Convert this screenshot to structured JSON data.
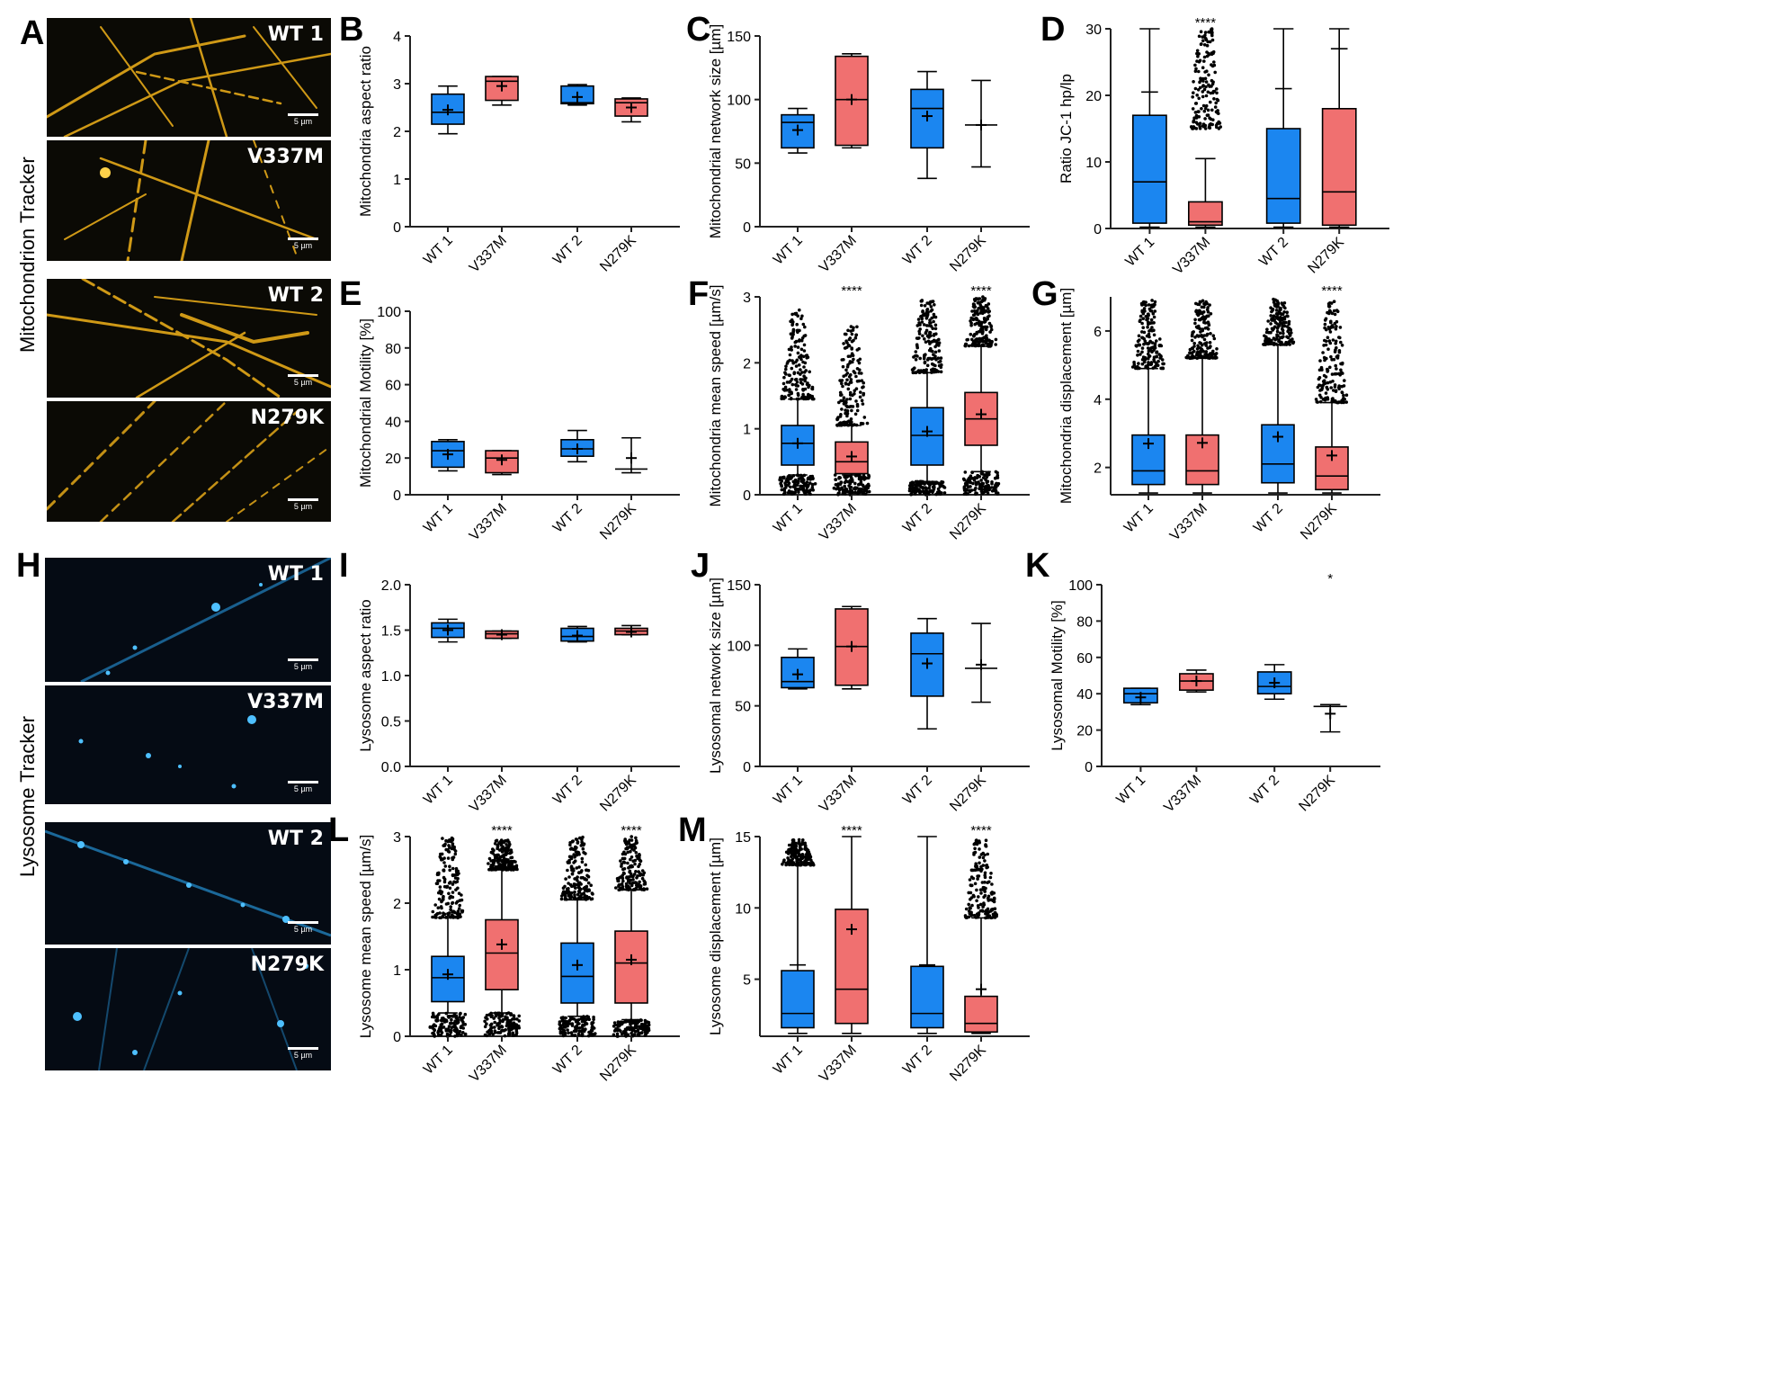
{
  "panel_letters": [
    "A",
    "B",
    "C",
    "D",
    "E",
    "F",
    "G",
    "H",
    "I",
    "J",
    "K",
    "L",
    "M"
  ],
  "side_labels": {
    "mito": "Mitochondrion Tracker",
    "lyso": "Lysosome Tracker"
  },
  "scale_text": "5 µm",
  "colors": {
    "wt": "#1b86f0",
    "mut": "#f07070",
    "mito_glow": "#f2b21a",
    "lyso_glow": "#2aa6f2",
    "micro_bg": "#0b0a05",
    "lyso_bg": "#050b14"
  },
  "micrographs": {
    "mito": [
      "WT 1",
      "V337M",
      "WT 2",
      "N279K"
    ],
    "lyso": [
      "WT 1",
      "V337M",
      "WT 2",
      "N279K"
    ]
  },
  "chart_data": [
    {
      "id": "B",
      "type": "box",
      "ylabel": "Mitochondria aspect ratio",
      "ylim": [
        0,
        4
      ],
      "yticks": [
        0,
        1,
        2,
        3,
        4
      ],
      "categories": [
        "WT 1",
        "V337M",
        "WT 2",
        "N279K"
      ],
      "annotations": [
        "",
        "",
        "",
        ""
      ],
      "boxes": [
        {
          "min": 1.95,
          "q1": 2.15,
          "median": 2.4,
          "q3": 2.78,
          "max": 2.95,
          "mean": 2.45
        },
        {
          "min": 2.55,
          "q1": 2.65,
          "median": 3.05,
          "q3": 3.15,
          "max": 3.15,
          "mean": 2.95
        },
        {
          "min": 2.55,
          "q1": 2.58,
          "median": 2.6,
          "q3": 2.95,
          "max": 2.98,
          "mean": 2.72
        },
        {
          "min": 2.2,
          "q1": 2.32,
          "median": 2.6,
          "q3": 2.68,
          "max": 2.7,
          "mean": 2.5
        }
      ]
    },
    {
      "id": "C",
      "type": "box",
      "ylabel": "Mitochondrial network size [µm]",
      "ylim": [
        0,
        150
      ],
      "yticks": [
        0,
        50,
        100,
        150
      ],
      "categories": [
        "WT 1",
        "V337M",
        "WT 2",
        "N279K"
      ],
      "annotations": [
        "",
        "",
        "",
        ""
      ],
      "boxes": [
        {
          "min": 58,
          "q1": 62,
          "median": 82,
          "q3": 88,
          "max": 93,
          "mean": 76
        },
        {
          "min": 62,
          "q1": 64,
          "median": 100,
          "q3": 134,
          "max": 136,
          "mean": 100
        },
        {
          "min": 38,
          "q1": 62,
          "median": 93,
          "q3": 108,
          "max": 122,
          "mean": 87
        },
        {
          "min": 47,
          "q1": 80,
          "median": 80,
          "q3": 80,
          "max": 115,
          "mean": 80
        }
      ]
    },
    {
      "id": "D",
      "type": "box",
      "ylabel": "Ratio JC-1 hp/lp",
      "ylim": [
        0,
        30
      ],
      "yticks": [
        0,
        10,
        20,
        30
      ],
      "categories": [
        "WT 1",
        "V337M",
        "WT 2",
        "N279K"
      ],
      "annotations": [
        "",
        "****",
        "",
        ""
      ],
      "boxes": [
        {
          "min": 0.2,
          "q1": 0.8,
          "median": 7,
          "q3": 17,
          "max": 30,
          "mean": null,
          "upper_tick": 20.5
        },
        {
          "min": 0.2,
          "q1": 0.5,
          "median": 1,
          "q3": 4,
          "max": 10.5,
          "mean": null,
          "out_hi": [
            15,
            30
          ]
        },
        {
          "min": 0.2,
          "q1": 0.8,
          "median": 4.5,
          "q3": 15,
          "max": 30,
          "mean": null,
          "upper_tick": 21
        },
        {
          "min": 0.2,
          "q1": 0.5,
          "median": 5.5,
          "q3": 18,
          "max": 30,
          "mean": null,
          "upper_tick": 27
        }
      ]
    },
    {
      "id": "E",
      "type": "box",
      "ylabel": "Mitochondrial Motility [%]",
      "ylim": [
        0,
        100
      ],
      "yticks": [
        0,
        20,
        40,
        60,
        80,
        100
      ],
      "categories": [
        "WT 1",
        "V337M",
        "WT 2",
        "N279K"
      ],
      "annotations": [
        "",
        "",
        "",
        ""
      ],
      "boxes": [
        {
          "min": 13,
          "q1": 15,
          "median": 24,
          "q3": 29,
          "max": 30,
          "mean": 22
        },
        {
          "min": 11,
          "q1": 12,
          "median": 20,
          "q3": 24,
          "max": 24,
          "mean": 19
        },
        {
          "min": 18,
          "q1": 21,
          "median": 25,
          "q3": 30,
          "max": 35,
          "mean": 25
        },
        {
          "min": 12,
          "q1": 14,
          "median": 14,
          "q3": 14,
          "max": 31,
          "mean": 20
        }
      ]
    },
    {
      "id": "F",
      "type": "box",
      "ylabel": "Mitochondria mean speed [µm/s]",
      "ylim": [
        0,
        3
      ],
      "yticks": [
        0,
        1,
        2,
        3
      ],
      "categories": [
        "WT 1",
        "V337M",
        "WT 2",
        "N279K"
      ],
      "annotations": [
        "",
        "****",
        "",
        "****"
      ],
      "boxes": [
        {
          "min": 0.3,
          "q1": 0.45,
          "median": 0.78,
          "q3": 1.05,
          "max": 1.45,
          "mean": 0.78,
          "out_hi": [
            1.45,
            2.8
          ],
          "out_lo": [
            0,
            0.3
          ]
        },
        {
          "min": 0.3,
          "q1": 0.32,
          "median": 0.5,
          "q3": 0.8,
          "max": 1.05,
          "mean": 0.58,
          "out_hi": [
            1.05,
            2.55
          ],
          "out_lo": [
            0,
            0.3
          ]
        },
        {
          "min": 0.2,
          "q1": 0.45,
          "median": 0.9,
          "q3": 1.32,
          "max": 1.85,
          "mean": 0.96,
          "out_hi": [
            1.85,
            2.95
          ],
          "out_lo": [
            0,
            0.2
          ]
        },
        {
          "min": 0.35,
          "q1": 0.75,
          "median": 1.15,
          "q3": 1.55,
          "max": 2.25,
          "mean": 1.22,
          "out_hi": [
            2.25,
            3.0
          ],
          "out_lo": [
            0,
            0.35
          ]
        }
      ]
    },
    {
      "id": "G",
      "type": "box",
      "ylabel": "Mitochondria displacement [µm]",
      "ylim": [
        1.2,
        7
      ],
      "yticks": [
        2,
        4,
        6
      ],
      "categories": [
        "WT 1",
        "V337M",
        "WT 2",
        "N279K"
      ],
      "annotations": [
        "",
        "",
        "",
        "****"
      ],
      "boxes": [
        {
          "min": 1.25,
          "q1": 1.5,
          "median": 1.9,
          "q3": 2.95,
          "max": 4.9,
          "mean": 2.7,
          "out_hi": [
            4.9,
            6.9
          ]
        },
        {
          "min": 1.25,
          "q1": 1.5,
          "median": 1.9,
          "q3": 2.95,
          "max": 5.2,
          "mean": 2.72,
          "out_hi": [
            5.2,
            6.9
          ]
        },
        {
          "min": 1.25,
          "q1": 1.55,
          "median": 2.1,
          "q3": 3.25,
          "max": 5.6,
          "mean": 2.9,
          "out_hi": [
            5.6,
            6.95
          ]
        },
        {
          "min": 1.25,
          "q1": 1.35,
          "median": 1.75,
          "q3": 2.6,
          "max": 3.9,
          "mean": 2.35,
          "out_hi": [
            3.9,
            6.9
          ]
        }
      ]
    },
    {
      "id": "I",
      "type": "box",
      "ylabel": "Lysosome aspect ratio",
      "ylim": [
        0,
        2
      ],
      "yticks": [
        0.0,
        0.5,
        1.0,
        1.5,
        2.0
      ],
      "categories": [
        "WT 1",
        "V337M",
        "WT 2",
        "N279K"
      ],
      "annotations": [
        "",
        "",
        "",
        ""
      ],
      "boxes": [
        {
          "min": 1.37,
          "q1": 1.42,
          "median": 1.52,
          "q3": 1.58,
          "max": 1.62,
          "mean": 1.5
        },
        {
          "min": 1.41,
          "q1": 1.41,
          "median": 1.46,
          "q3": 1.49,
          "max": 1.49,
          "mean": 1.45
        },
        {
          "min": 1.37,
          "q1": 1.38,
          "median": 1.43,
          "q3": 1.52,
          "max": 1.54,
          "mean": 1.44
        },
        {
          "min": 1.45,
          "q1": 1.45,
          "median": 1.49,
          "q3": 1.52,
          "max": 1.55,
          "mean": 1.48
        }
      ]
    },
    {
      "id": "J",
      "type": "box",
      "ylabel": "Lysosomal network size [µm]",
      "ylim": [
        0,
        150
      ],
      "yticks": [
        0,
        50,
        100,
        150
      ],
      "categories": [
        "WT 1",
        "V337M",
        "WT 2",
        "N279K"
      ],
      "annotations": [
        "",
        "",
        "",
        ""
      ],
      "boxes": [
        {
          "min": 64,
          "q1": 65,
          "median": 70,
          "q3": 90,
          "max": 97,
          "mean": 76
        },
        {
          "min": 64,
          "q1": 67,
          "median": 99,
          "q3": 130,
          "max": 132,
          "mean": 99
        },
        {
          "min": 31,
          "q1": 58,
          "median": 93,
          "q3": 110,
          "max": 122,
          "mean": 85
        },
        {
          "min": 53,
          "q1": 81,
          "median": 81,
          "q3": 81,
          "max": 118,
          "mean": 84
        }
      ]
    },
    {
      "id": "K",
      "type": "box",
      "ylabel": "Lysosomal Motility [%]",
      "ylim": [
        0,
        100
      ],
      "yticks": [
        0,
        20,
        40,
        60,
        80,
        100
      ],
      "categories": [
        "WT 1",
        "V337M",
        "WT 2",
        "N279K"
      ],
      "annotations": [
        "",
        "",
        "",
        "*"
      ],
      "boxes": [
        {
          "min": 34,
          "q1": 35,
          "median": 40,
          "q3": 43,
          "max": 43,
          "mean": 38
        },
        {
          "min": 41,
          "q1": 42,
          "median": 47,
          "q3": 51,
          "max": 53,
          "mean": 47
        },
        {
          "min": 37,
          "q1": 40,
          "median": 44,
          "q3": 52,
          "max": 56,
          "mean": 46
        },
        {
          "min": 19,
          "q1": 33,
          "median": 33,
          "q3": 33,
          "max": 34,
          "mean": 29
        }
      ]
    },
    {
      "id": "L",
      "type": "box",
      "ylabel": "Lysosome mean speed [µm/s]",
      "ylim": [
        0,
        3
      ],
      "yticks": [
        0,
        1,
        2,
        3
      ],
      "categories": [
        "WT 1",
        "V337M",
        "WT 2",
        "N279K"
      ],
      "annotations": [
        "",
        "****",
        "",
        "****"
      ],
      "boxes": [
        {
          "min": 0.35,
          "q1": 0.52,
          "median": 0.88,
          "q3": 1.2,
          "max": 1.78,
          "mean": 0.93,
          "out_hi": [
            1.78,
            3.0
          ],
          "out_lo": [
            0,
            0.35
          ]
        },
        {
          "min": 0.35,
          "q1": 0.7,
          "median": 1.25,
          "q3": 1.75,
          "max": 2.5,
          "mean": 1.38,
          "out_hi": [
            2.5,
            2.95
          ],
          "out_lo": [
            0,
            0.35
          ]
        },
        {
          "min": 0.3,
          "q1": 0.5,
          "median": 0.9,
          "q3": 1.4,
          "max": 2.05,
          "mean": 1.07,
          "out_hi": [
            2.05,
            3.0
          ],
          "out_lo": [
            0,
            0.3
          ]
        },
        {
          "min": 0.25,
          "q1": 0.5,
          "median": 1.1,
          "q3": 1.58,
          "max": 2.2,
          "mean": 1.15,
          "out_hi": [
            2.2,
            3.0
          ],
          "out_lo": [
            0,
            0.25
          ]
        }
      ]
    },
    {
      "id": "M",
      "type": "box",
      "ylabel": "Lysosome displacement [µm]",
      "ylim": [
        1,
        15
      ],
      "yticks": [
        5,
        10,
        15
      ],
      "categories": [
        "WT 1",
        "V337M",
        "WT 2",
        "N279K"
      ],
      "annotations": [
        "",
        "****",
        "",
        "****"
      ],
      "boxes": [
        {
          "min": 1.2,
          "q1": 1.6,
          "median": 2.6,
          "q3": 5.6,
          "max": 13,
          "mean": null,
          "upper_tick": 6.0,
          "out_hi": [
            13,
            14.8
          ]
        },
        {
          "min": 1.2,
          "q1": 1.9,
          "median": 4.3,
          "q3": 9.9,
          "max": 15,
          "mean": 8.5
        },
        {
          "min": 1.2,
          "q1": 1.6,
          "median": 2.6,
          "q3": 5.9,
          "max": 15,
          "mean": null,
          "upper_tick": 6.0
        },
        {
          "min": 1.2,
          "q1": 1.3,
          "median": 1.9,
          "q3": 3.8,
          "max": 9.3,
          "mean": 4.3,
          "out_hi": [
            9.3,
            14.8
          ]
        }
      ]
    }
  ]
}
